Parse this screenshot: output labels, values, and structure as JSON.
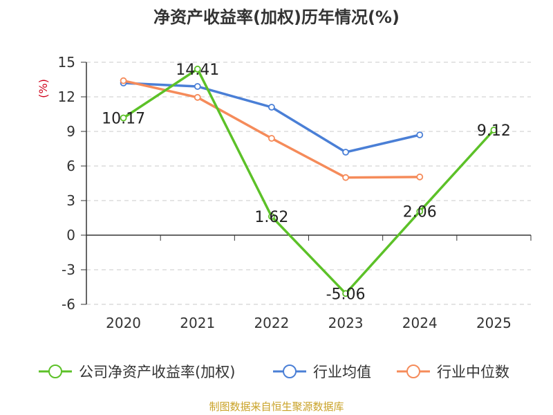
{
  "chart_data": {
    "type": "line",
    "title": "净资产收益率(加权)历年情况(%)",
    "ylabel": "(%)",
    "xlabel": "",
    "categories": [
      "2020",
      "2021",
      "2022",
      "2023",
      "2024",
      "2025"
    ],
    "ylim": [
      -6,
      15
    ],
    "yticks": [
      15,
      12,
      9,
      6,
      3,
      0,
      -3,
      -6
    ],
    "grid": true,
    "legend_position": "bottom",
    "series": [
      {
        "name": "公司净资产收益率(加权)",
        "color": "#5cc128",
        "values": [
          10.17,
          14.41,
          1.62,
          -5.06,
          2.06,
          9.12
        ],
        "labels": [
          "10.17",
          "14.41",
          "1.62",
          "-5.06",
          "2.06",
          "9.12"
        ]
      },
      {
        "name": "行业均值",
        "color": "#4a7fd6",
        "values": [
          13.2,
          12.9,
          11.1,
          7.2,
          8.7,
          null
        ]
      },
      {
        "name": "行业中位数",
        "color": "#f58b5a",
        "values": [
          13.4,
          11.95,
          8.4,
          5.0,
          5.05,
          null
        ]
      }
    ],
    "source": "制图数据来自恒生聚源数据库"
  },
  "colors": {
    "axis": "#333333",
    "grid": "#c8c8c8",
    "unit": "#d0021b",
    "source": "#c9a227"
  }
}
